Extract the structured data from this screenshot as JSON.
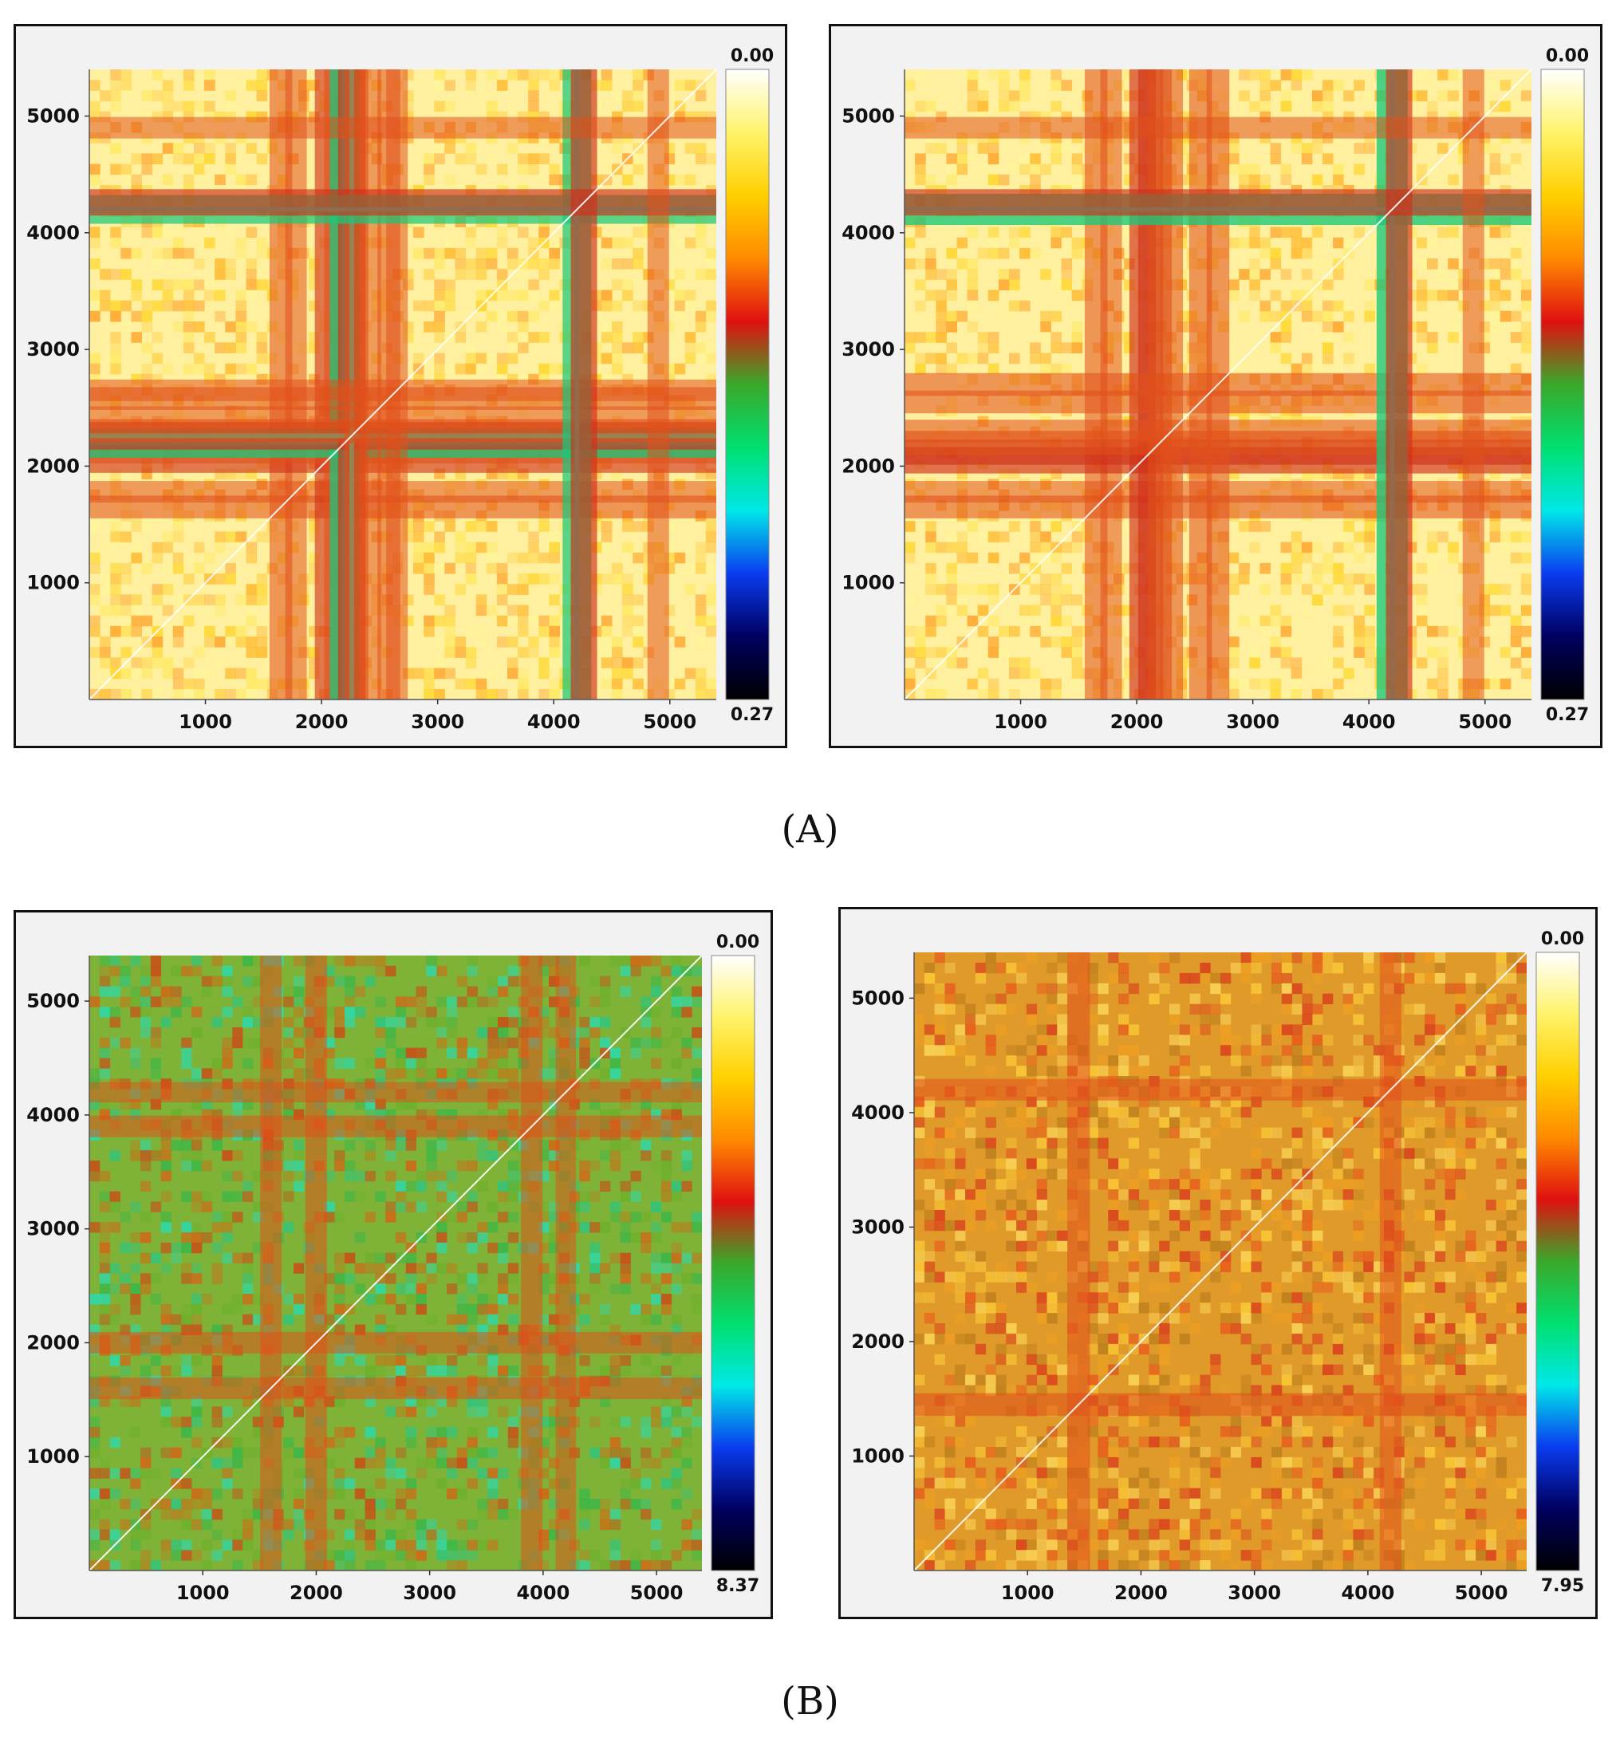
{
  "figure": {
    "label_a": "(A)",
    "label_b": "(B)"
  },
  "chart_data": [
    {
      "type": "heatmap",
      "panel": "A-left",
      "x_ticks": [
        "1000",
        "2000",
        "3000",
        "4000",
        "5000"
      ],
      "y_ticks": [
        "1000",
        "2000",
        "3000",
        "4000",
        "5000"
      ],
      "xlim": [
        0,
        5400
      ],
      "ylim": [
        0,
        5400
      ],
      "colorbar_top": "0.00",
      "colorbar_bottom": "0.27",
      "colormap": [
        "#ffffff",
        "#fff36a",
        "#ffd000",
        "#ff8a00",
        "#e01010",
        "#3aa82a",
        "#00e070",
        "#00e8e8",
        "#0a3cf0",
        "#000060",
        "#000000"
      ],
      "background": "#fff0a0",
      "band_positions": [
        1650,
        1780,
        2050,
        2120,
        2200,
        2260,
        2300,
        2420,
        2580,
        2650,
        4200,
        4260,
        4900
      ],
      "band_strength": [
        0.35,
        0.3,
        0.45,
        0.35,
        0.65,
        0.55,
        0.4,
        0.3,
        0.35,
        0.3,
        0.6,
        0.5,
        0.3
      ]
    },
    {
      "type": "heatmap",
      "panel": "A-right",
      "x_ticks": [
        "1000",
        "2000",
        "3000",
        "4000",
        "5000"
      ],
      "y_ticks": [
        "1000",
        "2000",
        "3000",
        "4000",
        "5000"
      ],
      "xlim": [
        0,
        5400
      ],
      "ylim": [
        0,
        5400
      ],
      "colorbar_top": "0.00",
      "colorbar_bottom": "0.27",
      "colormap": [
        "#ffffff",
        "#fff36a",
        "#ffd000",
        "#ff8a00",
        "#e01010",
        "#3aa82a",
        "#00e070",
        "#00e8e8",
        "#0a3cf0",
        "#000060",
        "#000000"
      ],
      "background": "#fff0a0",
      "band_positions": [
        1650,
        1780,
        2050,
        2120,
        2200,
        2300,
        2550,
        2700,
        4200,
        4260,
        4900
      ],
      "band_strength": [
        0.35,
        0.3,
        0.5,
        0.45,
        0.4,
        0.35,
        0.35,
        0.35,
        0.7,
        0.5,
        0.3
      ]
    },
    {
      "type": "heatmap",
      "panel": "B-left",
      "x_ticks": [
        "1000",
        "2000",
        "3000",
        "4000",
        "5000"
      ],
      "y_ticks": [
        "1000",
        "2000",
        "3000",
        "4000",
        "5000"
      ],
      "xlim": [
        0,
        5400
      ],
      "ylim": [
        0,
        5400
      ],
      "colorbar_top": "0.00",
      "colorbar_bottom": "8.37",
      "colormap": [
        "#ffffff",
        "#fff36a",
        "#ffd000",
        "#ff8a00",
        "#e01010",
        "#3aa82a",
        "#00e070",
        "#00e8e8",
        "#0a3cf0",
        "#000060",
        "#000000"
      ],
      "background": "#7fb338",
      "band_positions": [
        1600,
        2000,
        3900,
        4200
      ],
      "band_strength": [
        0.3,
        0.3,
        0.3,
        0.25
      ]
    },
    {
      "type": "heatmap",
      "panel": "B-right",
      "x_ticks": [
        "1000",
        "2000",
        "3000",
        "4000",
        "5000"
      ],
      "y_ticks": [
        "1000",
        "2000",
        "3000",
        "4000",
        "5000"
      ],
      "xlim": [
        0,
        5400
      ],
      "ylim": [
        0,
        5400
      ],
      "colorbar_top": "0.00",
      "colorbar_bottom": "7.95",
      "colormap": [
        "#ffffff",
        "#fff36a",
        "#ffd000",
        "#ff8a00",
        "#e01010",
        "#3aa82a",
        "#00e070",
        "#00e8e8",
        "#0a3cf0",
        "#000060",
        "#000000"
      ],
      "background": "#e09a2a",
      "band_positions": [
        1450,
        4200
      ],
      "band_strength": [
        0.35,
        0.3
      ]
    }
  ]
}
